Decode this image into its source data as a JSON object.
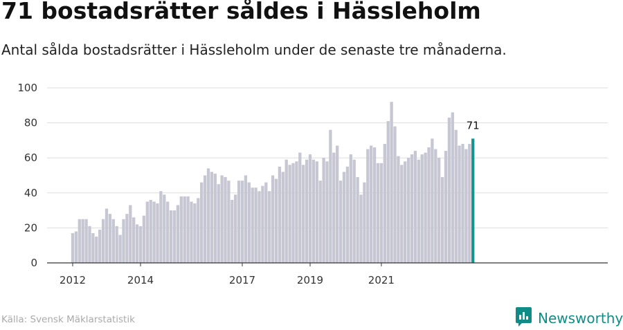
{
  "header": {
    "title": "71 bostadsrätter såldes i Hässleholm",
    "subtitle": "Antal sålda bostadsrätter i Hässleholm under de senaste tre månaderna."
  },
  "footer": {
    "source": "Källa: Svensk Mäklarstatistik",
    "brand": "Newsworthy",
    "brand_icon": "newsworthy-logo-icon"
  },
  "colors": {
    "bar": "#c7c6d3",
    "highlight": "#13968f",
    "grid": "#dddddd",
    "axis": "#333333",
    "brand": "#0f8c86"
  },
  "chart_data": {
    "type": "bar",
    "xlabel": "",
    "ylabel": "",
    "ylim": [
      0,
      100
    ],
    "yticks": [
      0,
      20,
      40,
      60,
      80,
      100
    ],
    "xticks": [
      "2012",
      "2014",
      "2017",
      "2019",
      "2021"
    ],
    "xtick_index": [
      0,
      20,
      50,
      70,
      91
    ],
    "highlight_label": "71",
    "values": [
      17,
      18,
      25,
      25,
      25,
      21,
      17,
      15,
      19,
      25,
      31,
      28,
      25,
      21,
      16,
      25,
      28,
      33,
      26,
      22,
      21,
      27,
      35,
      36,
      35,
      34,
      41,
      39,
      35,
      30,
      30,
      33,
      38,
      38,
      38,
      35,
      34,
      37,
      46,
      50,
      54,
      52,
      51,
      45,
      50,
      49,
      47,
      36,
      39,
      47,
      47,
      50,
      46,
      43,
      43,
      41,
      44,
      46,
      41,
      50,
      48,
      55,
      52,
      59,
      56,
      57,
      58,
      63,
      56,
      59,
      62,
      59,
      58,
      47,
      60,
      58,
      76,
      63,
      67,
      47,
      52,
      55,
      62,
      59,
      49,
      39,
      46,
      65,
      67,
      66,
      57,
      57,
      68,
      81,
      92,
      78,
      61,
      56,
      58,
      60,
      62,
      64,
      59,
      62,
      63,
      66,
      71,
      65,
      60,
      49,
      64,
      83,
      86,
      76,
      67,
      68,
      65,
      68,
      71
    ]
  }
}
